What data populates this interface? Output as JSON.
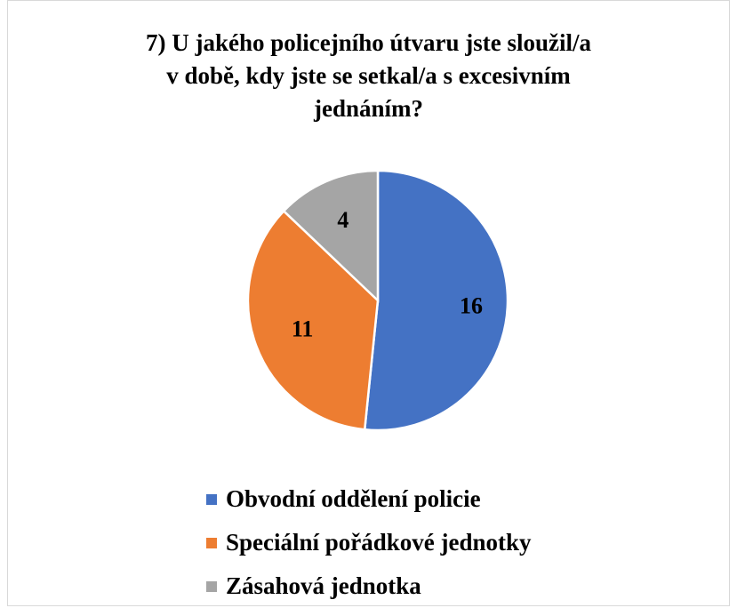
{
  "chart_data": {
    "type": "pie",
    "title_lines": [
      "7) U jakého policejního útvaru jste sloužil/a",
      "v době, kdy jste se setkal/a s excesivním",
      "jednáním?"
    ],
    "categories": [
      "Obvodní oddělení policie",
      "Speciální pořádkové jednotky",
      "Zásahová jednotka"
    ],
    "values": [
      16,
      11,
      4
    ],
    "data_labels": [
      "16",
      "11",
      "4"
    ],
    "colors": [
      "#4472c4",
      "#ed7d31",
      "#a5a5a5"
    ],
    "legend_position": "bottom"
  }
}
